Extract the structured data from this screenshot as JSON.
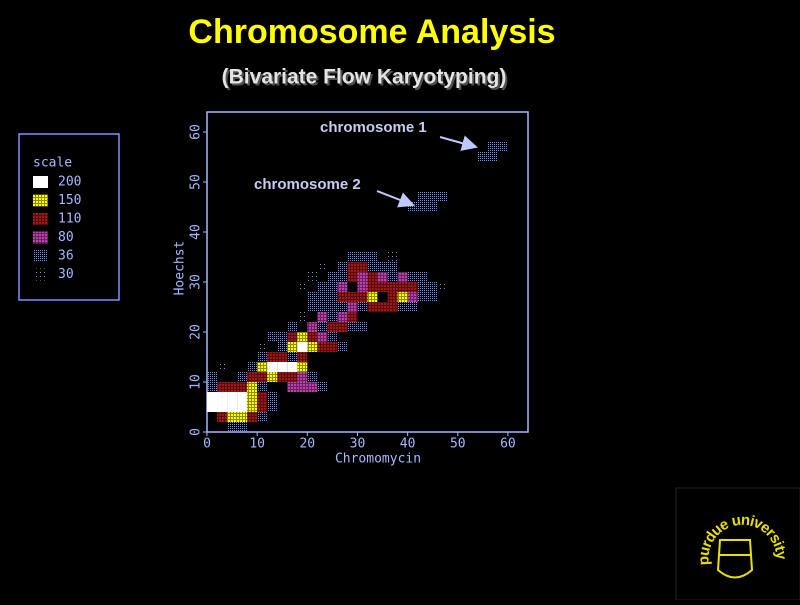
{
  "chart_data": {
    "type": "density",
    "title": "Chromosome Analysis",
    "subtitle": "(Bivariate Flow Karyotyping)",
    "x_label": "Chromomycin",
    "y_label": "Hoechst",
    "xlim": [
      0,
      64
    ],
    "ylim": [
      0,
      64
    ],
    "xticks": [
      0,
      10,
      20,
      30,
      40,
      50,
      60
    ],
    "yticks": [
      0,
      10,
      20,
      30,
      40,
      50,
      60
    ],
    "legend_title": "scale",
    "annotations": [
      "chromosome 1",
      "chromosome 2"
    ],
    "series": [
      {
        "name": "200",
        "color": "#ffffff",
        "x": [
          0,
          2,
          4,
          6,
          0,
          2,
          4,
          6,
          12,
          14,
          16,
          18
        ],
        "y": [
          4,
          4,
          4,
          4,
          6,
          6,
          6,
          6,
          12,
          12,
          12,
          16
        ]
      },
      {
        "name": "150",
        "color": "#ffff00",
        "x": [
          8,
          8,
          6,
          4,
          8,
          10,
          18,
          12,
          20,
          18,
          16,
          32,
          38
        ],
        "y": [
          4,
          6,
          2,
          2,
          8,
          12,
          12,
          10,
          16,
          18,
          16,
          26,
          26
        ]
      },
      {
        "name": "110",
        "color": "#a01818",
        "x": [
          2,
          4,
          6,
          10,
          10,
          2,
          8,
          10,
          14,
          16,
          12,
          14,
          8,
          16,
          20,
          22,
          24,
          18,
          24,
          26,
          28,
          28,
          30,
          32,
          28,
          26,
          28,
          30,
          32,
          34,
          36,
          32,
          34,
          36,
          38,
          40,
          36
        ],
        "y": [
          8,
          8,
          8,
          6,
          4,
          2,
          2,
          10,
          10,
          10,
          14,
          14,
          10,
          18,
          18,
          16,
          16,
          14,
          20,
          20,
          22,
          32,
          32,
          30,
          30,
          26,
          26,
          26,
          28,
          24,
          24,
          24,
          28,
          28,
          28,
          28,
          26
        ]
      },
      {
        "name": "80",
        "color": "#c040b0",
        "x": [
          16,
          18,
          20,
          18,
          22,
          20,
          22,
          26,
          30,
          26,
          38,
          30,
          34,
          28,
          40
        ],
        "y": [
          8,
          8,
          8,
          10,
          18,
          20,
          22,
          22,
          28,
          28,
          30,
          30,
          30,
          24,
          26
        ]
      },
      {
        "name": "36",
        "color": "#7090ff",
        "x": [
          0,
          0,
          10,
          12,
          12,
          4,
          6,
          10,
          10,
          16,
          20,
          22,
          8,
          6,
          14,
          14,
          24,
          26,
          22,
          16,
          12,
          24,
          30,
          28,
          20,
          22,
          24,
          20,
          22,
          24,
          22,
          24,
          24,
          26,
          26,
          28,
          30,
          32,
          32,
          34,
          36,
          36,
          40,
          42,
          44,
          42,
          44,
          42,
          38,
          40,
          30,
          26,
          40,
          42,
          44,
          44,
          46,
          42,
          54,
          56,
          56,
          58
        ],
        "y": [
          8,
          10,
          2,
          4,
          6,
          0,
          0,
          8,
          14,
          14,
          10,
          8,
          12,
          10,
          18,
          16,
          18,
          16,
          20,
          20,
          18,
          22,
          20,
          20,
          24,
          24,
          24,
          26,
          26,
          26,
          28,
          28,
          30,
          30,
          32,
          34,
          34,
          34,
          32,
          32,
          32,
          30,
          30,
          28,
          28,
          30,
          26,
          26,
          24,
          24,
          24,
          24,
          44,
          44,
          44,
          46,
          46,
          46,
          54,
          54,
          56,
          56
        ]
      },
      {
        "name": "30",
        "color": "#8090c0",
        "x": [
          18,
          20,
          22,
          46,
          36,
          18,
          10,
          2
        ],
        "y": [
          28,
          30,
          32,
          28,
          34,
          22,
          16,
          12
        ]
      }
    ],
    "logo": "purdue university"
  }
}
